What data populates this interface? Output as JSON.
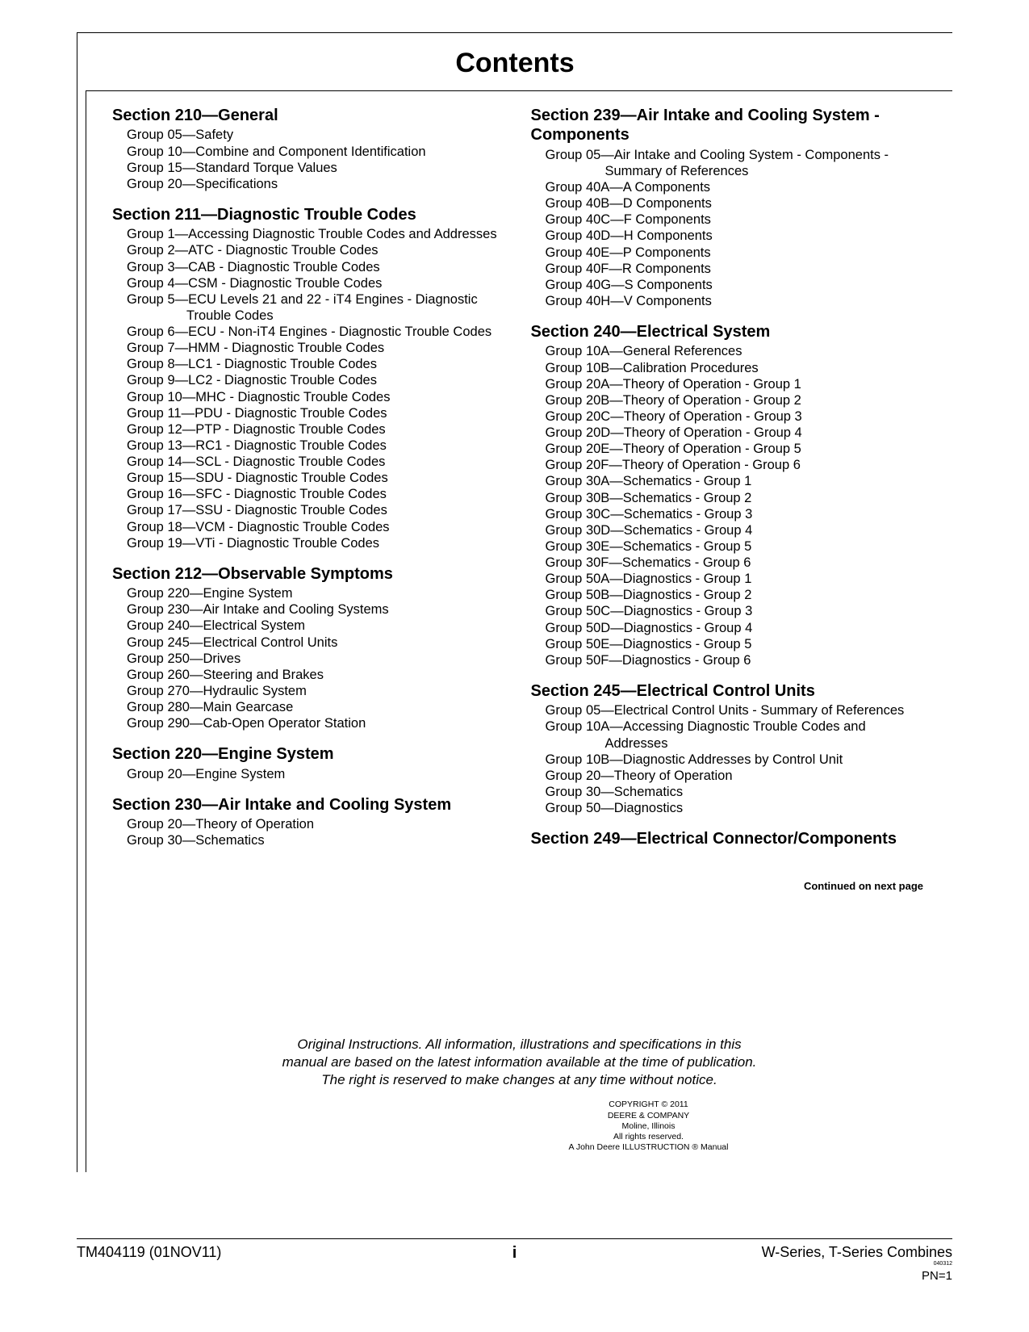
{
  "title": "Contents",
  "left_sections": [
    {
      "title": "Section 210—General",
      "groups": [
        "Group 05—Safety",
        "Group 10—Combine and Component Identification",
        "Group 15—Standard Torque Values",
        "Group 20—Specifications"
      ]
    },
    {
      "title": "Section 211—Diagnostic Trouble Codes",
      "groups": [
        "Group 1—Accessing Diagnostic Trouble Codes and Addresses",
        "Group 2—ATC - Diagnostic Trouble Codes",
        "Group 3—CAB - Diagnostic Trouble Codes",
        "Group 4—CSM - Diagnostic Trouble Codes",
        "Group 5—ECU Levels 21 and 22 - iT4 Engines - Diagnostic Trouble Codes",
        "Group 6—ECU - Non-iT4 Engines - Diagnostic Trouble Codes",
        "Group 7—HMM - Diagnostic Trouble Codes",
        "Group 8—LC1 - Diagnostic Trouble Codes",
        "Group 9—LC2 - Diagnostic Trouble Codes",
        "Group 10—MHC - Diagnostic Trouble Codes",
        "Group 11—PDU - Diagnostic Trouble Codes",
        "Group 12—PTP - Diagnostic Trouble Codes",
        "Group 13—RC1 - Diagnostic Trouble Codes",
        "Group 14—SCL - Diagnostic Trouble Codes",
        "Group 15—SDU - Diagnostic Trouble Codes",
        "Group 16—SFC - Diagnostic Trouble Codes",
        "Group 17—SSU - Diagnostic Trouble Codes",
        "Group 18—VCM - Diagnostic Trouble Codes",
        "Group 19—VTi - Diagnostic Trouble Codes"
      ]
    },
    {
      "title": "Section 212—Observable Symptoms",
      "groups": [
        "Group 220—Engine System",
        "Group 230—Air Intake and Cooling Systems",
        "Group 240—Electrical System",
        "Group 245—Electrical Control Units",
        "Group 250—Drives",
        "Group 260—Steering and Brakes",
        "Group 270—Hydraulic System",
        "Group 280—Main Gearcase",
        "Group 290—Cab-Open Operator Station"
      ]
    },
    {
      "title": "Section 220—Engine System",
      "groups": [
        "Group 20—Engine System"
      ]
    },
    {
      "title": "Section 230—Air Intake and Cooling System",
      "groups": [
        "Group 20—Theory of Operation",
        "Group 30—Schematics"
      ]
    }
  ],
  "right_sections": [
    {
      "title": "Section 239—Air Intake and Cooling System - Components",
      "groups": [
        "Group 05—Air Intake and Cooling System - Components - Summary of References",
        "Group 40A—A Components",
        "Group 40B—D Components",
        "Group 40C—F Components",
        "Group 40D—H Components",
        "Group 40E—P Components",
        "Group 40F—R Components",
        "Group 40G—S Components",
        "Group 40H—V Components"
      ]
    },
    {
      "title": "Section 240—Electrical System",
      "groups": [
        "Group 10A—General References",
        "Group 10B—Calibration Procedures",
        "Group 20A—Theory of Operation - Group 1",
        "Group 20B—Theory of Operation - Group 2",
        "Group 20C—Theory of Operation - Group 3",
        "Group 20D—Theory of Operation - Group 4",
        "Group 20E—Theory of Operation - Group 5",
        "Group 20F—Theory of Operation - Group 6",
        "Group 30A—Schematics - Group 1",
        "Group 30B—Schematics - Group 2",
        "Group 30C—Schematics - Group 3",
        "Group 30D—Schematics - Group 4",
        "Group 30E—Schematics - Group 5",
        "Group 30F—Schematics - Group 6",
        "Group 50A—Diagnostics - Group 1",
        "Group 50B—Diagnostics - Group 2",
        "Group 50C—Diagnostics - Group 3",
        "Group 50D—Diagnostics - Group 4",
        "Group 50E—Diagnostics - Group 5",
        "Group 50F—Diagnostics - Group 6"
      ]
    },
    {
      "title": "Section 245—Electrical Control Units",
      "groups": [
        "Group 05—Electrical Control Units - Summary of References",
        "Group 10A—Accessing Diagnostic Trouble Codes and Addresses",
        "Group 10B—Diagnostic Addresses by Control Unit",
        "Group 20—Theory of Operation",
        "Group 30—Schematics",
        "Group 50—Diagnostics"
      ]
    },
    {
      "title": "Section 249—Electrical Connector/Components",
      "groups": []
    }
  ],
  "continued": "Continued on next page",
  "notice": {
    "line1": "Original Instructions. All information, illustrations and specifications in this",
    "line2": "manual are based on the latest information available at the time of publication.",
    "line3": "The right is reserved to make changes at any time without notice."
  },
  "copyright": {
    "l1": "COPYRIGHT © 2011",
    "l2": "DEERE & COMPANY",
    "l3": "Moline, Illinois",
    "l4": "All rights reserved.",
    "l5": "A John Deere ILLUSTRUCTION ® Manual"
  },
  "footer": {
    "left": "TM404119 (01NOV11)",
    "center": "i",
    "right_main": "W-Series, T-Series Combines",
    "right_tiny": "040312",
    "right_pn": "PN=1"
  }
}
